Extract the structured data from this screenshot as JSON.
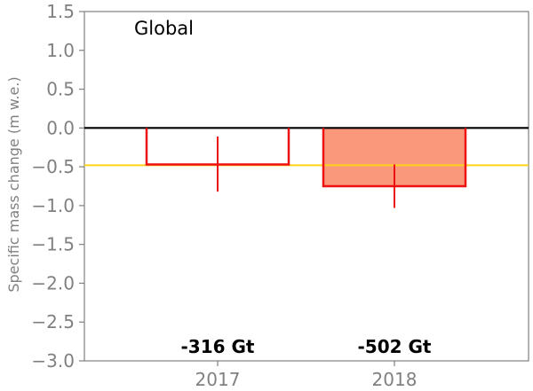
{
  "chart_data": {
    "type": "bar",
    "title": "Global",
    "ylabel": "Specific mass change (m w.e.)",
    "xlabel": "",
    "ylim": [
      -3.0,
      1.5
    ],
    "yticks": [
      1.5,
      1.0,
      0.5,
      0.0,
      -0.5,
      -1.0,
      -1.5,
      -2.0,
      -2.5,
      -3.0
    ],
    "ytick_labels": [
      "1.5",
      "1.0",
      "0.5",
      "0.0",
      "−0.5",
      "−1.0",
      "−1.5",
      "−2.0",
      "−2.5",
      "−3.0"
    ],
    "categories": [
      "2017",
      "2018"
    ],
    "values": [
      -0.47,
      -0.75
    ],
    "error_low": [
      -0.82,
      -1.03
    ],
    "error_high": [
      -0.11,
      -0.47
    ],
    "mass_labels": [
      "-316 Gt",
      "-502 Gt"
    ],
    "reference_line": -0.48,
    "colors": {
      "bar_edge": "#ee1111",
      "bar_fill": [
        "none",
        "#f9987a"
      ],
      "zero_line": "#000000",
      "reference_line": "#ffd21a",
      "axis": "#808080",
      "text": "#808080"
    },
    "grid": false
  }
}
